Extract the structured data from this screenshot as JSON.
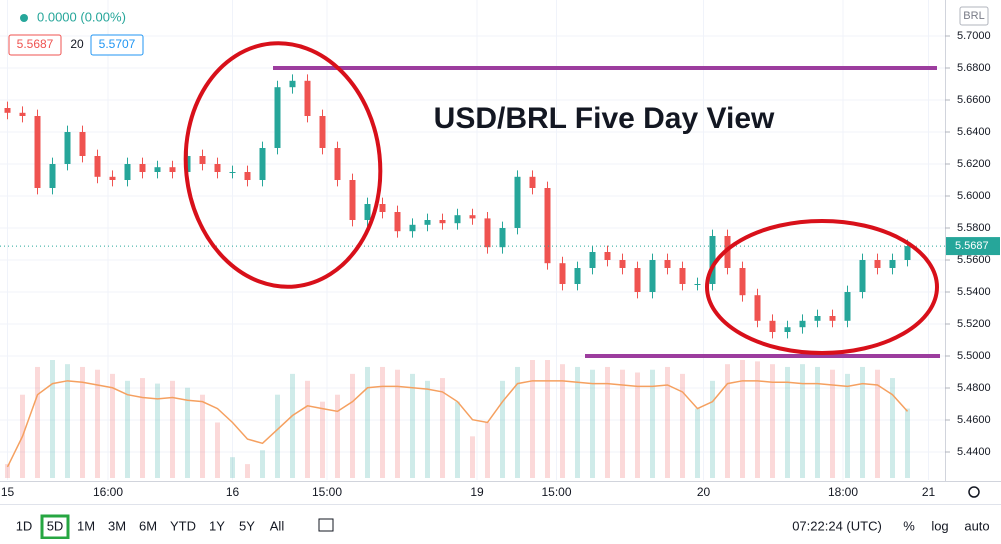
{
  "chart_data": {
    "type": "candlestick",
    "title": "USD/BRL Five Day View",
    "change_label": "0.0000 (0.00%)",
    "bid": 5.5687,
    "ma_length": 20,
    "ask": 5.5707,
    "currency": "BRL",
    "up_color": "#26a69a",
    "down_color": "#ef5350",
    "level_color": "#9c3d9e",
    "ma_color": "#f5a060",
    "ylim": [
      5.4225,
      5.7225
    ],
    "yticks": [
      {
        "value": 5.44,
        "label": "5.4400"
      },
      {
        "value": 5.46,
        "label": "5.4600"
      },
      {
        "value": 5.48,
        "label": "5.4800"
      },
      {
        "value": 5.5,
        "label": "5.5000"
      },
      {
        "value": 5.52,
        "label": "5.5200"
      },
      {
        "value": 5.54,
        "label": "5.5400"
      },
      {
        "value": 5.56,
        "label": "5.5600"
      },
      {
        "value": 5.58,
        "label": "5.5800"
      },
      {
        "value": 5.6,
        "label": "5.6000"
      },
      {
        "value": 5.62,
        "label": "5.6200"
      },
      {
        "value": 5.64,
        "label": "5.6400"
      },
      {
        "value": 5.66,
        "label": "5.6600"
      },
      {
        "value": 5.68,
        "label": "5.6800"
      },
      {
        "value": 5.7,
        "label": "5.7000"
      }
    ],
    "xlim": [
      -0.5,
      62.5
    ],
    "xticks": [
      {
        "value": 0,
        "label": "15"
      },
      {
        "value": 6.7,
        "label": "16:00"
      },
      {
        "value": 15,
        "label": "16"
      },
      {
        "value": 21.3,
        "label": "15:00"
      },
      {
        "value": 31.3,
        "label": "19"
      },
      {
        "value": 36.6,
        "label": "15:00"
      },
      {
        "value": 46.4,
        "label": "20"
      },
      {
        "value": 55.7,
        "label": "18:00"
      },
      {
        "value": 61.4,
        "label": "21"
      }
    ],
    "grid": true,
    "levels": [
      5.68,
      5.5
    ],
    "open": [
      5.655,
      5.652,
      5.65,
      5.605,
      5.62,
      5.64,
      5.625,
      5.612,
      5.61,
      5.62,
      5.615,
      5.618,
      5.615,
      5.625,
      5.62,
      5.615,
      5.615,
      5.61,
      5.63,
      5.668,
      5.672,
      5.65,
      5.63,
      5.61,
      5.585,
      5.595,
      5.59,
      5.578,
      5.582,
      5.585,
      5.583,
      5.588,
      5.586,
      5.568,
      5.58,
      5.612,
      5.605,
      5.558,
      5.545,
      5.555,
      5.565,
      5.56,
      5.555,
      5.54,
      5.56,
      5.555,
      5.545,
      5.545,
      5.575,
      5.555,
      5.538,
      5.522,
      5.515,
      5.518,
      5.522,
      5.525,
      5.522,
      5.54,
      5.56,
      5.555,
      5.56
    ],
    "high": [
      5.659,
      5.656,
      5.654,
      5.624,
      5.644,
      5.644,
      5.629,
      5.616,
      5.624,
      5.624,
      5.622,
      5.622,
      5.629,
      5.629,
      5.624,
      5.619,
      5.619,
      5.634,
      5.672,
      5.676,
      5.676,
      5.654,
      5.634,
      5.614,
      5.599,
      5.599,
      5.594,
      5.586,
      5.589,
      5.589,
      5.592,
      5.592,
      5.59,
      5.584,
      5.616,
      5.616,
      5.609,
      5.562,
      5.559,
      5.569,
      5.569,
      5.564,
      5.559,
      5.564,
      5.564,
      5.559,
      5.549,
      5.579,
      5.579,
      5.559,
      5.542,
      5.526,
      5.522,
      5.526,
      5.529,
      5.529,
      5.544,
      5.564,
      5.564,
      5.564,
      5.5727
    ],
    "low": [
      5.648,
      5.646,
      5.601,
      5.601,
      5.616,
      5.621,
      5.608,
      5.606,
      5.606,
      5.611,
      5.611,
      5.611,
      5.611,
      5.616,
      5.611,
      5.611,
      5.606,
      5.606,
      5.626,
      5.664,
      5.646,
      5.626,
      5.606,
      5.581,
      5.581,
      5.586,
      5.574,
      5.574,
      5.578,
      5.579,
      5.579,
      5.582,
      5.564,
      5.564,
      5.576,
      5.601,
      5.554,
      5.541,
      5.541,
      5.551,
      5.556,
      5.551,
      5.536,
      5.536,
      5.551,
      5.541,
      5.541,
      5.541,
      5.551,
      5.534,
      5.518,
      5.511,
      5.511,
      5.514,
      5.518,
      5.518,
      5.518,
      5.536,
      5.551,
      5.551,
      5.556
    ],
    "close": [
      5.652,
      5.65,
      5.605,
      5.62,
      5.64,
      5.625,
      5.612,
      5.61,
      5.62,
      5.615,
      5.618,
      5.615,
      5.625,
      5.62,
      5.615,
      5.615,
      5.61,
      5.63,
      5.668,
      5.672,
      5.65,
      5.63,
      5.61,
      5.585,
      5.595,
      5.59,
      5.578,
      5.582,
      5.585,
      5.583,
      5.588,
      5.586,
      5.568,
      5.58,
      5.612,
      5.605,
      5.558,
      5.545,
      5.555,
      5.565,
      5.56,
      5.555,
      5.54,
      5.56,
      5.555,
      5.545,
      5.545,
      5.575,
      5.555,
      5.538,
      5.522,
      5.515,
      5.518,
      5.522,
      5.525,
      5.522,
      5.54,
      5.56,
      5.555,
      5.56,
      5.5687
    ],
    "volume": [
      10,
      60,
      80,
      85,
      82,
      80,
      78,
      75,
      70,
      72,
      68,
      70,
      65,
      60,
      40,
      15,
      10,
      20,
      60,
      75,
      70,
      55,
      60,
      75,
      80,
      80,
      78,
      75,
      70,
      72,
      55,
      30,
      40,
      70,
      80,
      85,
      85,
      82,
      80,
      78,
      80,
      78,
      76,
      78,
      80,
      75,
      50,
      70,
      82,
      85,
      84,
      82,
      80,
      82,
      80,
      78,
      75,
      80,
      78,
      72,
      50
    ],
    "volume_ma": [
      8,
      30,
      60,
      68,
      70,
      69,
      67,
      65,
      60,
      58,
      57,
      58,
      56,
      55,
      50,
      40,
      28,
      25,
      35,
      45,
      52,
      50,
      48,
      55,
      65,
      66,
      66,
      65,
      64,
      62,
      55,
      42,
      40,
      55,
      68,
      70,
      70,
      70,
      69,
      68,
      68,
      67,
      66,
      66,
      67,
      62,
      50,
      55,
      68,
      70,
      70,
      69,
      69,
      68,
      68,
      67,
      66,
      68,
      67,
      60,
      48
    ]
  },
  "toolbar": {
    "ranges": [
      "1D",
      "5D",
      "1M",
      "3M",
      "6M",
      "YTD",
      "1Y",
      "5Y",
      "All"
    ],
    "active": "5D",
    "clock": "07:22:24 (UTC)",
    "percent": "%",
    "log": "log",
    "auto": "auto"
  }
}
